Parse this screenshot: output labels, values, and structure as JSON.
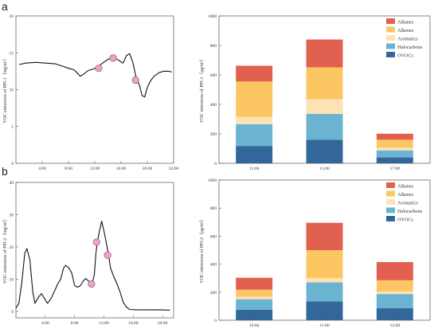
{
  "panels": [
    {
      "letter": "a",
      "line": {
        "ylabel": "VOC emissions of PPI-1（mg/m³）",
        "ylim": [
          0,
          20
        ],
        "yticks": [
          "0",
          "5",
          "10",
          "15",
          "20"
        ],
        "xlim": [
          0,
          24
        ],
        "xticks": [
          "4:00",
          "8:00",
          "12:00",
          "16:00",
          "20:00",
          "24:00"
        ],
        "xtick_values": [
          4,
          8,
          12,
          16,
          20,
          24
        ],
        "series": [
          [
            0.5,
            13.4
          ],
          [
            1.5,
            13.6
          ],
          [
            3,
            13.7
          ],
          [
            4.5,
            13.6
          ],
          [
            6,
            13.5
          ],
          [
            7,
            13.2
          ],
          [
            8,
            12.9
          ],
          [
            8.8,
            12.7
          ],
          [
            9.3,
            12.3
          ],
          [
            9.8,
            11.8
          ],
          [
            10.3,
            12.1
          ],
          [
            11,
            12.6
          ],
          [
            11.8,
            12.8
          ],
          [
            12.5,
            13.1
          ],
          [
            13.2,
            13.6
          ],
          [
            14,
            14.1
          ],
          [
            14.6,
            14.3
          ],
          [
            15.2,
            14.2
          ],
          [
            15.8,
            13.9
          ],
          [
            16.3,
            13.6
          ],
          [
            16.8,
            14.6
          ],
          [
            17.3,
            14.9
          ],
          [
            17.8,
            13.7
          ],
          [
            18.3,
            11.6
          ],
          [
            18.8,
            10.6
          ],
          [
            19.2,
            9.2
          ],
          [
            19.6,
            9.0
          ],
          [
            20,
            10.3
          ],
          [
            20.5,
            11.2
          ],
          [
            21,
            11.8
          ],
          [
            21.8,
            12.3
          ],
          [
            22.5,
            12.5
          ],
          [
            23.2,
            12.5
          ],
          [
            23.7,
            12.4
          ]
        ],
        "markers": [
          [
            12.6,
            12.9
          ],
          [
            14.8,
            14.3
          ],
          [
            18.2,
            11.3
          ]
        ]
      },
      "bar": {
        "ylabel": "VOC emissions of PPI-1（μg/m³）",
        "ylim": [
          0,
          1000
        ],
        "yticks": [
          "0",
          "200",
          "400",
          "600",
          "800",
          "1000"
        ],
        "categories": [
          "13:00",
          "15:00",
          "17:00"
        ],
        "series": [
          {
            "name": "OVOCs",
            "values": [
              118,
              160,
              40
            ]
          },
          {
            "name": "Halocarbons",
            "values": [
              148,
              175,
              48
            ]
          },
          {
            "name": "Aromatics",
            "values": [
              50,
              100,
              18
            ]
          },
          {
            "name": "Alkenes",
            "values": [
              239,
              216,
              54
            ]
          },
          {
            "name": "Alkanes",
            "values": [
              107,
              189,
              41
            ]
          }
        ]
      }
    },
    {
      "letter": "b",
      "line": {
        "ylabel": "VOC emissions of PPI-2（mg/m³）",
        "ylim": [
          -2,
          40
        ],
        "yticks": [
          "0",
          "10",
          "20",
          "30",
          "40"
        ],
        "xlim": [
          0,
          21.5
        ],
        "xticks": [
          "4:00",
          "8:00",
          "12:00",
          "16:00",
          "20:00"
        ],
        "xtick_values": [
          4,
          8,
          12,
          16,
          20
        ],
        "series": [
          [
            0,
            1.0
          ],
          [
            0.4,
            2.5
          ],
          [
            0.8,
            9
          ],
          [
            1.2,
            18
          ],
          [
            1.5,
            19.5
          ],
          [
            1.9,
            16
          ],
          [
            2.3,
            6
          ],
          [
            2.6,
            2.5
          ],
          [
            3.1,
            4.5
          ],
          [
            3.5,
            5.5
          ],
          [
            3.9,
            4.0
          ],
          [
            4.3,
            2.5
          ],
          [
            4.8,
            4.0
          ],
          [
            5.3,
            6.5
          ],
          [
            5.7,
            8.5
          ],
          [
            6.1,
            10.0
          ],
          [
            6.5,
            13.5
          ],
          [
            6.8,
            14.3
          ],
          [
            7.2,
            13.5
          ],
          [
            7.6,
            12.0
          ],
          [
            8.0,
            8.0
          ],
          [
            8.4,
            7.5
          ],
          [
            8.8,
            8.0
          ],
          [
            9.2,
            9.5
          ],
          [
            9.5,
            10.2
          ],
          [
            9.8,
            9.6
          ],
          [
            10.1,
            9.0
          ],
          [
            10.4,
            8.6
          ],
          [
            10.7,
            11.5
          ],
          [
            10.9,
            18.0
          ],
          [
            11.1,
            21.5
          ],
          [
            11.4,
            25.0
          ],
          [
            11.7,
            28.0
          ],
          [
            12.0,
            25.0
          ],
          [
            12.3,
            21.5
          ],
          [
            12.6,
            18.0
          ],
          [
            12.9,
            13.5
          ],
          [
            13.3,
            11.0
          ],
          [
            13.7,
            9.0
          ],
          [
            14.2,
            6.0
          ],
          [
            14.6,
            3.0
          ],
          [
            15.0,
            1.5
          ],
          [
            15.5,
            0.6
          ],
          [
            16.5,
            0.5
          ],
          [
            18,
            0.5
          ],
          [
            19.5,
            0.5
          ],
          [
            21,
            0.4
          ]
        ],
        "markers": [
          [
            10.3,
            8.5
          ],
          [
            11.0,
            21.5
          ],
          [
            12.5,
            17.5
          ]
        ]
      },
      "bar": {
        "ylabel": "VOC emissions of PPI-2（μg/m³）",
        "ylim": [
          0,
          1000
        ],
        "yticks": [
          "0",
          "200",
          "400",
          "600",
          "800",
          "1000"
        ],
        "categories": [
          "10:00",
          "11:00",
          "12:00"
        ],
        "series": [
          {
            "name": "OVOCs",
            "values": [
              75,
              135,
              87
            ]
          },
          {
            "name": "Halocarbons",
            "values": [
              75,
              135,
              100
            ]
          },
          {
            "name": "Aromatics",
            "values": [
              18,
              30,
              18
            ]
          },
          {
            "name": "Alkenes",
            "values": [
              50,
              200,
              80
            ]
          },
          {
            "name": "Alkanes",
            "values": [
              85,
              195,
              130
            ]
          }
        ]
      }
    }
  ],
  "colors": {
    "Alkanes": "#e2604f",
    "Alkenes": "#fcc762",
    "Aromatics": "#fde3b4",
    "Halocarbons": "#6bb4d1",
    "OVOCs": "#33679a",
    "line": "#111111",
    "marker_fill": "#eea0c7",
    "marker_stroke": "#7a5177"
  },
  "legend_order": [
    "Alkanes",
    "Alkenes",
    "Aromatics",
    "Halocarbons",
    "OVOCs"
  ]
}
